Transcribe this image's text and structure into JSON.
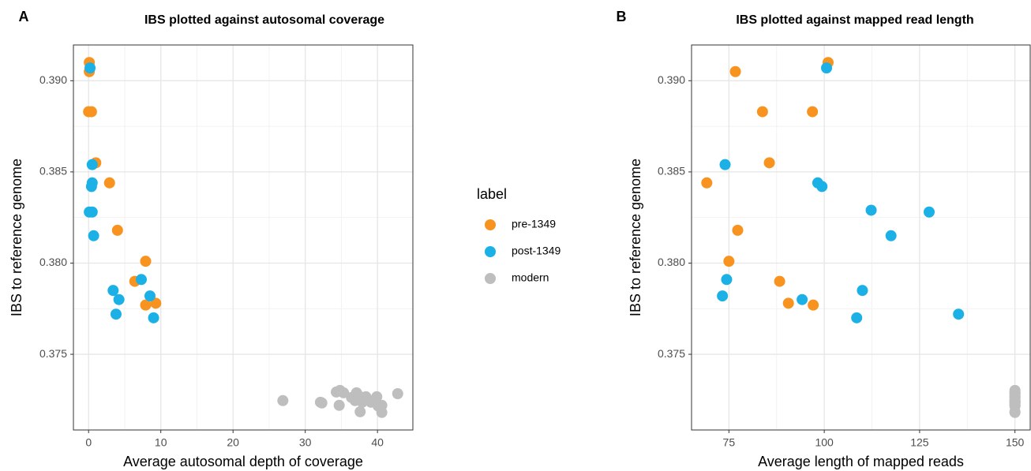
{
  "chart_data": [
    {
      "type": "scatter",
      "panel_label": "A",
      "title": "IBS plotted against autosomal coverage",
      "x_label": "Average autosomal depth of coverage",
      "y_label": "IBS to reference genome",
      "xlim": [
        -2.1,
        44.9
      ],
      "ylim": [
        0.37085,
        0.39196
      ],
      "xticks": [
        0,
        10,
        20,
        30,
        40
      ],
      "yticks": [
        0.375,
        {
          "value": 0.38,
          "label": "0.380"
        },
        0.385,
        {
          "value": 0.39,
          "label": "0.390"
        }
      ],
      "grid": true,
      "legend_title": "label",
      "series": [
        {
          "name": "pre-1349",
          "color": "#f7931e",
          "x": [
            0.1,
            0.1,
            0.0,
            0.4,
            1.0,
            2.9,
            4.0,
            7.9,
            6.4,
            7.9,
            9.3
          ],
          "values": [
            0.391,
            0.3905,
            0.3883,
            0.3883,
            0.3855,
            0.3844,
            0.3818,
            0.3801,
            0.379,
            0.3777,
            0.3778
          ]
        },
        {
          "name": "post-1349",
          "color": "#1bb1e7",
          "x": [
            0.2,
            0.5,
            0.5,
            0.4,
            0.1,
            0.5,
            0.7,
            7.3,
            3.4,
            4.2,
            8.5,
            3.8,
            9.0
          ],
          "values": [
            0.3907,
            0.3854,
            0.3844,
            0.3842,
            0.3828,
            0.3828,
            0.3815,
            0.3791,
            0.3785,
            0.378,
            0.3782,
            0.3772,
            0.377
          ]
        },
        {
          "name": "modern",
          "color": "#bebebe",
          "x": [
            26.9,
            32.1,
            32.3,
            34.3,
            34.8,
            35.3,
            34.7,
            36.4,
            36.9,
            37.4,
            37.9,
            37.6,
            38.4,
            39.1,
            39.9,
            38.0,
            37.1,
            40.1,
            40.6,
            40.6,
            42.8
          ],
          "values": [
            0.37246,
            0.37237,
            0.37233,
            0.37293,
            0.37302,
            0.37289,
            0.3722,
            0.37263,
            0.37246,
            0.37272,
            0.37237,
            0.37185,
            0.37267,
            0.37237,
            0.37267,
            0.3725,
            0.37289,
            0.37216,
            0.37181,
            0.3722,
            0.37284
          ]
        }
      ]
    },
    {
      "type": "scatter",
      "panel_label": "B",
      "title": "IBS plotted against mapped read length",
      "x_label": "Average length of mapped reads",
      "y_label": "IBS to reference genome",
      "xlim": [
        65.2,
        154.0
      ],
      "ylim": [
        0.37085,
        0.39196
      ],
      "xticks": [
        75,
        100,
        125,
        150
      ],
      "yticks": [
        0.375,
        {
          "value": 0.38,
          "label": "0.380"
        },
        0.385,
        {
          "value": 0.39,
          "label": "0.390"
        }
      ],
      "grid": true,
      "series": [
        {
          "name": "pre-1349",
          "color": "#f7931e",
          "x": [
            76.7,
            101.0,
            83.8,
            96.9,
            85.6,
            69.2,
            77.3,
            75.0,
            88.3,
            90.6,
            97.1
          ],
          "values": [
            0.3905,
            0.391,
            0.3883,
            0.3883,
            0.3855,
            0.3844,
            0.3818,
            0.3801,
            0.379,
            0.3778,
            0.3777
          ]
        },
        {
          "name": "post-1349",
          "color": "#1bb1e7",
          "x": [
            100.6,
            74.0,
            98.3,
            99.4,
            112.3,
            127.5,
            117.5,
            74.4,
            110.0,
            73.3,
            94.2,
            135.2,
            108.5
          ],
          "values": [
            0.3907,
            0.3854,
            0.3844,
            0.3842,
            0.3829,
            0.3828,
            0.3815,
            0.3791,
            0.3785,
            0.3782,
            0.378,
            0.3772,
            0.377
          ]
        },
        {
          "name": "modern",
          "color": "#bebebe",
          "x": [
            150,
            150,
            150,
            150,
            150,
            150,
            150,
            150,
            150,
            150,
            150,
            150,
            150,
            150,
            150,
            150,
            150,
            150,
            150,
            150,
            150
          ],
          "values": [
            0.37246,
            0.37237,
            0.37233,
            0.37293,
            0.37302,
            0.37289,
            0.3722,
            0.37263,
            0.37246,
            0.37272,
            0.37237,
            0.37185,
            0.37267,
            0.37237,
            0.37267,
            0.3725,
            0.37289,
            0.37216,
            0.37181,
            0.3722,
            0.37284
          ]
        }
      ]
    }
  ]
}
